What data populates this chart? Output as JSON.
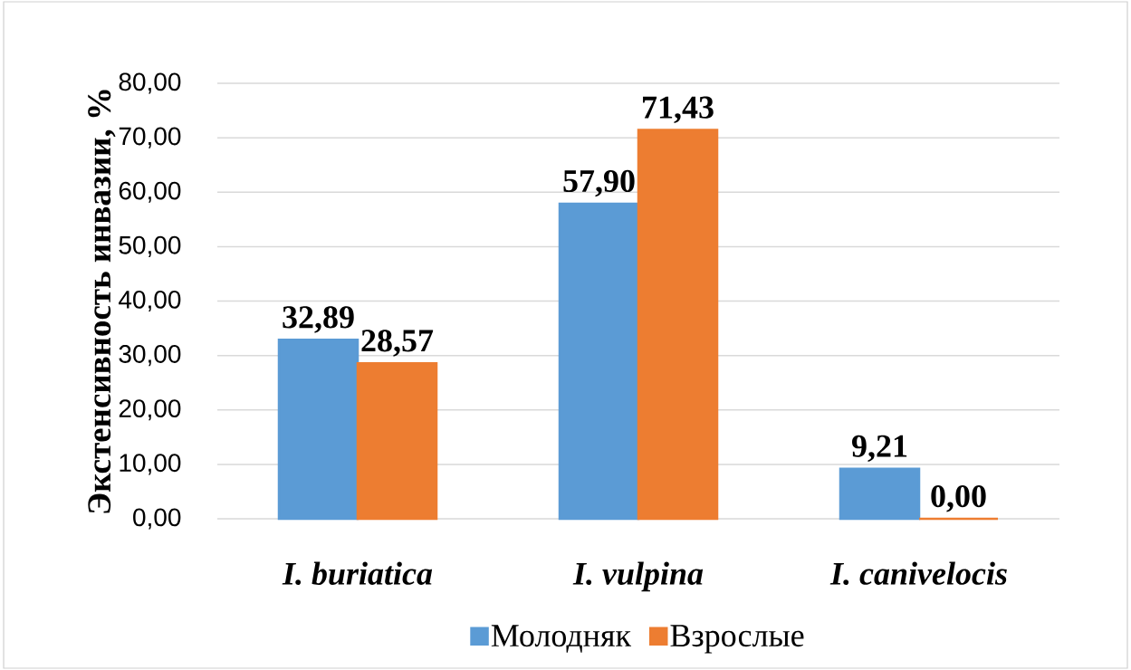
{
  "chart_data": {
    "type": "bar",
    "categories": [
      "I. buriatica",
      "I. vulpina",
      "I. canivelocis"
    ],
    "series": [
      {
        "name": "Молодняк",
        "color": "#5b9bd5",
        "values": [
          32.89,
          57.9,
          9.21
        ],
        "value_labels": [
          "32,89",
          "57,90",
          "9,21"
        ]
      },
      {
        "name": "Взрослые",
        "color": "#ed7d31",
        "values": [
          28.57,
          71.43,
          0.0
        ],
        "value_labels": [
          "28,57",
          "71,43",
          "0,00"
        ]
      }
    ],
    "ylabel": "Экстенсивность инвазии, %",
    "ylim": [
      0,
      80
    ],
    "yticks": [
      {
        "value": 0,
        "label": "0,00"
      },
      {
        "value": 10,
        "label": "10,00"
      },
      {
        "value": 20,
        "label": "20,00"
      },
      {
        "value": 30,
        "label": "30,00"
      },
      {
        "value": 40,
        "label": "40,00"
      },
      {
        "value": 50,
        "label": "50,00"
      },
      {
        "value": 60,
        "label": "60,00"
      },
      {
        "value": 70,
        "label": "70,00"
      },
      {
        "value": 80,
        "label": "80,00"
      }
    ],
    "grid": "y",
    "legend": "bottom"
  }
}
